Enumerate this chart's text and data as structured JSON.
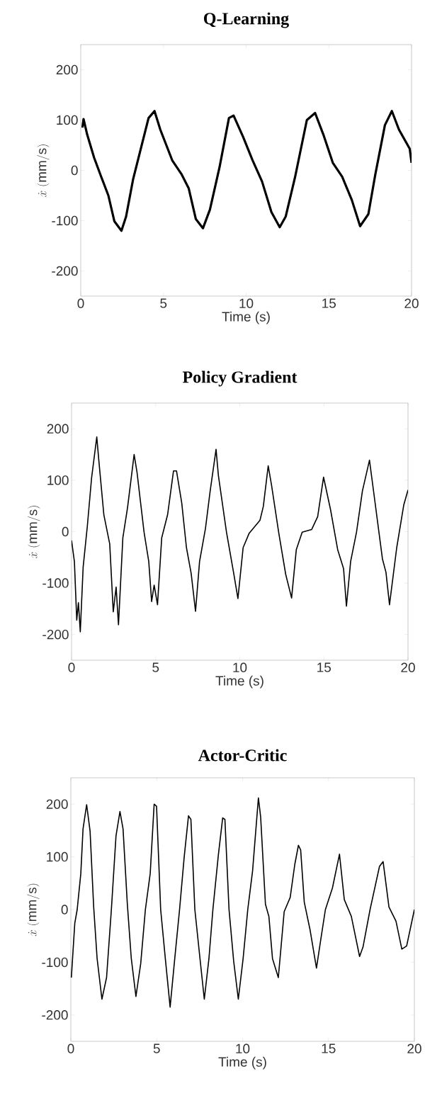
{
  "chart_data": [
    {
      "type": "line",
      "title": "Q-Learning",
      "xlabel": "Time (s)",
      "ylabel": "\\dot{x}\\ (\\mathrm{mm/s})",
      "xlim": [
        0,
        20
      ],
      "ylim": [
        -250,
        250
      ],
      "xticks": [
        0,
        5,
        10,
        15,
        20
      ],
      "yticks": [
        -200,
        -100,
        0,
        100,
        200
      ],
      "grid": false,
      "x": [
        0.1,
        0.17,
        0.39,
        0.81,
        1.24,
        1.67,
        2.03,
        2.46,
        2.74,
        3.17,
        3.67,
        4.1,
        4.46,
        4.81,
        5.53,
        6.1,
        6.53,
        6.96,
        7.39,
        7.81,
        8.39,
        8.96,
        9.24,
        9.81,
        10.39,
        10.96,
        11.53,
        12.03,
        12.39,
        12.96,
        13.67,
        14.17,
        14.67,
        15.24,
        15.81,
        16.39,
        16.89,
        17.39,
        17.81,
        18.39,
        18.81,
        19.24,
        19.89,
        20
      ],
      "series": [
        {
          "color": "#000000",
          "values": [
            85,
            102,
            71,
            25,
            -13,
            -50,
            -101,
            -120,
            -92,
            -17,
            48,
            104,
            118,
            81,
            20,
            -8,
            -36,
            -97,
            -115,
            -78,
            6,
            104,
            109,
            67,
            20,
            -22,
            -83,
            -113,
            -92,
            -13,
            100,
            114,
            71,
            15,
            -13,
            -59,
            -111,
            -87,
            -8,
            90,
            118,
            81,
            43,
            15
          ]
        }
      ]
    },
    {
      "type": "line",
      "title": "Policy Gradient",
      "xlabel": "Time (s)",
      "ylabel": "\\dot{x}\\ (\\mathrm{mm/s})",
      "xlim": [
        0,
        20
      ],
      "ylim": [
        -250,
        250
      ],
      "xticks": [
        0,
        5,
        10,
        15,
        20
      ],
      "yticks": [
        -200,
        -100,
        0,
        100,
        200
      ],
      "grid": false,
      "x": [
        0,
        0.17,
        0.31,
        0.41,
        0.52,
        0.69,
        0.94,
        1.19,
        1.5,
        1.64,
        1.92,
        2.27,
        2.48,
        2.65,
        2.79,
        3.05,
        3.33,
        3.72,
        3.89,
        4.31,
        4.59,
        4.76,
        4.91,
        5.11,
        5.36,
        5.71,
        6.06,
        6.24,
        6.55,
        6.83,
        7.11,
        7.37,
        7.61,
        7.96,
        8.24,
        8.59,
        8.73,
        9.21,
        9.64,
        9.89,
        10.2,
        10.56,
        11.2,
        11.4,
        11.69,
        11.89,
        12.31,
        12.73,
        13.08,
        13.36,
        13.71,
        14.27,
        14.63,
        14.98,
        15.4,
        15.82,
        16.17,
        16.34,
        16.59,
        16.94,
        17.29,
        17.71,
        18.06,
        18.48,
        18.69,
        18.9,
        19.33,
        19.75,
        20
      ],
      "series": [
        {
          "color": "#000000",
          "values": [
            -17,
            -58,
            -172,
            -138,
            -195,
            -69,
            11,
            104,
            184,
            132,
            33,
            -24,
            -156,
            -108,
            -181,
            -12,
            47,
            150,
            116,
            -1,
            -58,
            -136,
            -104,
            -142,
            -12,
            33,
            118,
            118,
            56,
            -31,
            -81,
            -155,
            -58,
            6,
            79,
            160,
            109,
            -1,
            -81,
            -130,
            -31,
            -3,
            22,
            49,
            128,
            90,
            -1,
            -83,
            -129,
            -35,
            -1,
            4,
            29,
            106,
            42,
            -35,
            -72,
            -145,
            -58,
            -1,
            79,
            139,
            52,
            -53,
            -79,
            -142,
            -31,
            52,
            81
          ]
        }
      ]
    },
    {
      "type": "line",
      "title": "Actor-Critic",
      "xlabel": "Time (s)",
      "ylabel": "\\dot{x}\\ (\\mathrm{mm/s})",
      "xlim": [
        0,
        20
      ],
      "ylim": [
        -250,
        250
      ],
      "xticks": [
        0,
        5,
        10,
        15,
        20
      ],
      "yticks": [
        -200,
        -100,
        0,
        100,
        200
      ],
      "grid": false,
      "x": [
        0.03,
        0.23,
        0.37,
        0.58,
        0.71,
        0.92,
        1.12,
        1.33,
        1.53,
        1.81,
        2.08,
        2.36,
        2.63,
        2.86,
        3.04,
        3.29,
        3.52,
        3.79,
        4.07,
        4.34,
        4.62,
        4.85,
        4.99,
        5.23,
        5.51,
        5.78,
        6.05,
        6.33,
        6.6,
        6.85,
        6.99,
        7.22,
        7.49,
        7.77,
        8.04,
        8.27,
        8.59,
        8.84,
        8.97,
        9.21,
        9.48,
        9.75,
        10.03,
        10.3,
        10.58,
        10.92,
        11.05,
        11.33,
        11.53,
        11.74,
        12.08,
        12.42,
        12.77,
        13.04,
        13.25,
        13.38,
        13.59,
        13.93,
        14.3,
        14.55,
        14.82,
        15.23,
        15.64,
        15.92,
        16.33,
        16.81,
        17.01,
        17.42,
        17.97,
        18.18,
        18.52,
        18.93,
        19.27,
        19.55,
        20
      ],
      "series": [
        {
          "color": "#000000",
          "values": [
            -129,
            -26,
            0,
            68,
            153,
            199,
            149,
            5,
            -93,
            -170,
            -129,
            0,
            140,
            186,
            153,
            10,
            -93,
            -165,
            -102,
            0,
            68,
            200,
            196,
            0,
            -96,
            -185,
            -93,
            0,
            100,
            178,
            171,
            0,
            -84,
            -170,
            -93,
            0,
            104,
            174,
            171,
            0,
            -98,
            -170,
            -93,
            0,
            73,
            212,
            176,
            10,
            -13,
            -93,
            -129,
            -4,
            23,
            86,
            122,
            113,
            14,
            -39,
            -111,
            -57,
            0,
            41,
            105,
            19,
            -13,
            -89,
            -71,
            0,
            82,
            91,
            5,
            -22,
            -75,
            -69,
            0
          ]
        }
      ]
    }
  ]
}
